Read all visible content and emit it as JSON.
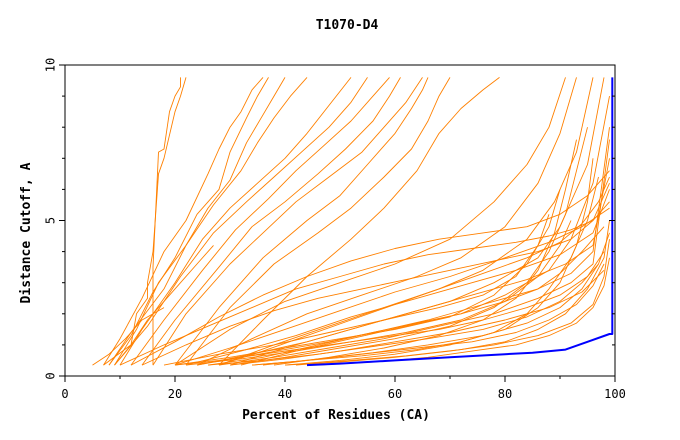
{
  "chart_data": {
    "type": "line",
    "title": "T1070-D4",
    "xlabel": "Percent of Residues (CA)",
    "ylabel": "Distance Cutoff, A",
    "xlim": [
      0,
      100
    ],
    "ylim": [
      0,
      10
    ],
    "x_ticks": [
      0,
      20,
      40,
      60,
      80,
      100
    ],
    "y_ticks": [
      0,
      5,
      10
    ],
    "grid": false,
    "legend": "none",
    "colors": {
      "models": "#ff8000",
      "best": "#0000ff"
    },
    "series": [
      {
        "color": "#0000ff",
        "x": [
          44,
          50,
          60,
          70,
          80,
          85,
          91,
          95,
          99,
          99.5,
          99.5
        ],
        "y": [
          0.35,
          0.4,
          0.5,
          0.6,
          0.7,
          0.75,
          0.85,
          1.1,
          1.35,
          1.35,
          9.6
        ]
      },
      {
        "color": "#ff8000",
        "x": [
          16,
          16,
          17,
          18,
          19,
          20,
          21,
          21
        ],
        "y": [
          0.35,
          3.5,
          7.2,
          7.3,
          8.5,
          9.0,
          9.3,
          9.6
        ]
      },
      {
        "color": "#ff8000",
        "x": [
          7,
          12,
          13,
          15,
          15,
          16,
          17,
          18,
          20,
          21,
          22
        ],
        "y": [
          0.35,
          1.0,
          2.0,
          2.5,
          3.0,
          4.0,
          6.5,
          7.0,
          8.5,
          9.0,
          9.6
        ]
      },
      {
        "color": "#ff8000",
        "x": [
          7,
          10,
          14,
          18,
          22,
          26,
          28,
          30,
          32,
          34,
          36
        ],
        "y": [
          0.35,
          1.2,
          2.5,
          4.0,
          5.0,
          6.5,
          7.3,
          8.0,
          8.5,
          9.2,
          9.6
        ]
      },
      {
        "color": "#ff8000",
        "x": [
          8,
          12,
          16,
          20,
          24,
          28,
          30,
          33,
          35,
          37
        ],
        "y": [
          0.35,
          1.3,
          2.7,
          3.8,
          5.2,
          6.0,
          7.2,
          8.3,
          9.0,
          9.6
        ]
      },
      {
        "color": "#ff8000",
        "x": [
          9,
          13,
          17,
          22,
          26,
          30,
          33,
          36,
          38,
          40
        ],
        "y": [
          0.35,
          1.5,
          3.0,
          4.2,
          5.4,
          6.3,
          7.5,
          8.4,
          9.0,
          9.6
        ]
      },
      {
        "color": "#ff8000",
        "x": [
          8,
          12,
          18,
          22,
          27,
          32,
          35,
          38,
          41,
          44
        ],
        "y": [
          0.35,
          1.4,
          2.8,
          4.2,
          5.5,
          6.6,
          7.5,
          8.3,
          9.0,
          9.6
        ]
      },
      {
        "color": "#ff8000",
        "x": [
          10,
          14,
          20,
          25,
          30,
          35,
          40,
          44,
          48,
          52
        ],
        "y": [
          0.35,
          1.5,
          3.0,
          4.4,
          5.4,
          6.2,
          7.0,
          7.8,
          8.7,
          9.6
        ]
      },
      {
        "color": "#ff8000",
        "x": [
          9,
          15,
          21,
          27,
          33,
          38,
          43,
          48,
          52,
          55
        ],
        "y": [
          0.35,
          1.6,
          3.2,
          4.6,
          5.6,
          6.4,
          7.2,
          8.0,
          8.8,
          9.6
        ]
      },
      {
        "color": "#ff8000",
        "x": [
          12,
          18,
          25,
          31,
          37,
          42,
          47,
          52,
          56,
          59
        ],
        "y": [
          0.35,
          1.8,
          3.4,
          4.7,
          5.7,
          6.6,
          7.4,
          8.2,
          9.0,
          9.6
        ]
      },
      {
        "color": "#ff8000",
        "x": [
          14,
          20,
          28,
          34,
          40,
          46,
          51,
          56,
          59,
          61
        ],
        "y": [
          0.35,
          1.8,
          3.5,
          4.8,
          5.6,
          6.5,
          7.3,
          8.2,
          9.0,
          9.6
        ]
      },
      {
        "color": "#ff8000",
        "x": [
          16,
          22,
          30,
          36,
          42,
          48,
          54,
          58,
          62,
          65
        ],
        "y": [
          0.35,
          2.0,
          3.6,
          4.6,
          5.6,
          6.4,
          7.2,
          8.0,
          8.8,
          9.6
        ]
      },
      {
        "color": "#ff8000",
        "x": [
          20,
          28,
          36,
          44,
          50,
          55,
          60,
          63,
          65,
          66
        ],
        "y": [
          0.35,
          2.2,
          3.8,
          5.0,
          5.8,
          6.8,
          7.8,
          8.6,
          9.2,
          9.6
        ]
      },
      {
        "color": "#ff8000",
        "x": [
          22,
          30,
          38,
          46,
          52,
          58,
          63,
          66,
          68,
          70
        ],
        "y": [
          0.35,
          2.2,
          3.6,
          4.6,
          5.4,
          6.4,
          7.3,
          8.2,
          9.0,
          9.6
        ]
      },
      {
        "color": "#ff8000",
        "x": [
          28,
          36,
          44,
          52,
          58,
          64,
          68,
          72,
          76,
          79
        ],
        "y": [
          0.35,
          1.8,
          3.2,
          4.4,
          5.4,
          6.6,
          7.8,
          8.6,
          9.2,
          9.6
        ]
      },
      {
        "color": "#ff8000",
        "x": [
          20,
          30,
          40,
          50,
          60,
          70,
          78,
          84,
          88,
          91
        ],
        "y": [
          0.35,
          1.5,
          2.4,
          3.0,
          3.6,
          4.4,
          5.6,
          6.8,
          8.0,
          9.6
        ]
      },
      {
        "color": "#ff8000",
        "x": [
          24,
          34,
          44,
          54,
          64,
          72,
          80,
          86,
          90,
          93
        ],
        "y": [
          0.35,
          1.2,
          2.0,
          2.6,
          3.2,
          3.8,
          4.8,
          6.2,
          7.8,
          9.6
        ]
      },
      {
        "color": "#ff8000",
        "x": [
          28,
          38,
          48,
          58,
          68,
          76,
          84,
          89,
          93,
          96
        ],
        "y": [
          0.35,
          1.0,
          1.6,
          2.2,
          2.8,
          3.4,
          4.4,
          5.6,
          7.2,
          9.6
        ]
      },
      {
        "color": "#ff8000",
        "x": [
          30,
          40,
          50,
          60,
          70,
          78,
          86,
          90,
          95,
          98
        ],
        "y": [
          0.35,
          0.9,
          1.4,
          1.9,
          2.4,
          3.0,
          3.8,
          4.8,
          6.8,
          9.6
        ]
      },
      {
        "color": "#ff8000",
        "x": [
          32,
          42,
          52,
          62,
          72,
          80,
          88,
          92,
          96,
          99
        ],
        "y": [
          0.35,
          0.8,
          1.2,
          1.6,
          2.0,
          2.6,
          3.4,
          4.4,
          6.2,
          9.0
        ]
      },
      {
        "color": "#ff8000",
        "x": [
          20,
          30,
          40,
          50,
          60,
          70,
          80,
          88,
          94,
          99
        ],
        "y": [
          0.35,
          0.9,
          1.5,
          2.1,
          2.7,
          3.2,
          3.8,
          4.3,
          4.8,
          5.4
        ]
      },
      {
        "color": "#ff8000",
        "x": [
          22,
          32,
          42,
          52,
          62,
          72,
          82,
          90,
          96,
          99
        ],
        "y": [
          0.35,
          0.8,
          1.3,
          1.9,
          2.4,
          2.9,
          3.4,
          3.9,
          4.6,
          6.0
        ]
      },
      {
        "color": "#ff8000",
        "x": [
          24,
          34,
          44,
          54,
          64,
          74,
          84,
          91,
          96,
          99
        ],
        "y": [
          0.35,
          0.7,
          1.1,
          1.6,
          2.1,
          2.6,
          3.1,
          3.6,
          4.2,
          7.0
        ]
      },
      {
        "color": "#ff8000",
        "x": [
          26,
          36,
          46,
          56,
          66,
          76,
          86,
          92,
          96,
          99
        ],
        "y": [
          0.35,
          0.6,
          1.0,
          1.4,
          1.8,
          2.3,
          2.8,
          3.3,
          4.0,
          8.0
        ]
      },
      {
        "color": "#ff8000",
        "x": [
          28,
          38,
          48,
          58,
          68,
          78,
          86,
          92,
          96,
          99
        ],
        "y": [
          0.35,
          0.6,
          0.9,
          1.2,
          1.6,
          2.0,
          2.5,
          3.0,
          3.6,
          7.6
        ]
      },
      {
        "color": "#ff8000",
        "x": [
          30,
          40,
          50,
          60,
          70,
          80,
          88,
          94,
          98
        ],
        "y": [
          0.35,
          0.55,
          0.8,
          1.1,
          1.4,
          1.8,
          2.2,
          2.7,
          3.4
        ]
      },
      {
        "color": "#ff8000",
        "x": [
          20,
          30,
          40,
          50,
          60,
          70,
          78,
          84,
          88,
          90
        ],
        "y": [
          0.35,
          0.6,
          0.9,
          1.2,
          1.5,
          1.9,
          2.6,
          3.6,
          4.8,
          6.0
        ]
      },
      {
        "color": "#ff8000",
        "x": [
          22,
          32,
          42,
          52,
          62,
          72,
          80,
          86,
          90,
          92
        ],
        "y": [
          0.35,
          0.55,
          0.8,
          1.1,
          1.4,
          1.8,
          2.4,
          3.2,
          4.2,
          5.0
        ]
      },
      {
        "color": "#ff8000",
        "x": [
          18,
          28,
          38,
          48,
          58,
          68,
          76,
          82,
          86,
          88
        ],
        "y": [
          0.35,
          0.7,
          1.0,
          1.4,
          1.8,
          2.2,
          2.6,
          3.2,
          4.2,
          5.2
        ]
      },
      {
        "color": "#ff8000",
        "x": [
          26,
          36,
          46,
          56,
          66,
          76,
          84,
          90,
          94,
          97
        ],
        "y": [
          0.35,
          0.5,
          0.7,
          0.95,
          1.2,
          1.5,
          1.9,
          2.4,
          3.0,
          3.6
        ]
      },
      {
        "color": "#ff8000",
        "x": [
          34,
          44,
          54,
          64,
          74,
          82,
          88,
          93,
          96,
          98
        ],
        "y": [
          0.35,
          0.5,
          0.7,
          0.9,
          1.1,
          1.4,
          1.8,
          2.3,
          2.9,
          3.6
        ]
      },
      {
        "color": "#ff8000",
        "x": [
          36,
          46,
          56,
          66,
          76,
          84,
          90,
          94,
          97,
          99
        ],
        "y": [
          0.35,
          0.55,
          0.75,
          1.0,
          1.3,
          1.7,
          2.2,
          2.8,
          3.6,
          4.6
        ]
      },
      {
        "color": "#ff8000",
        "x": [
          10,
          18,
          26,
          34,
          42,
          50,
          58,
          66,
          74,
          82,
          88,
          92,
          96,
          99
        ],
        "y": [
          0.35,
          1.0,
          1.6,
          2.2,
          2.8,
          3.2,
          3.6,
          3.9,
          4.1,
          4.3,
          4.5,
          4.7,
          5.0,
          5.6
        ]
      },
      {
        "color": "#ff8000",
        "x": [
          12,
          20,
          28,
          36,
          44,
          52,
          60,
          68,
          76,
          84,
          90,
          95,
          99
        ],
        "y": [
          0.35,
          1.1,
          1.9,
          2.6,
          3.2,
          3.7,
          4.1,
          4.4,
          4.6,
          4.8,
          5.2,
          5.8,
          6.6
        ]
      },
      {
        "color": "#ff8000",
        "x": [
          14,
          22,
          30,
          38,
          46,
          54,
          62,
          70,
          78,
          86,
          92,
          96,
          99
        ],
        "y": [
          0.35,
          1.0,
          1.6,
          2.1,
          2.5,
          2.8,
          3.1,
          3.4,
          3.7,
          4.0,
          4.4,
          5.0,
          6.2
        ]
      },
      {
        "color": "#ff8000",
        "x": [
          28,
          36,
          44,
          52,
          60,
          68,
          76,
          84,
          90,
          94,
          97,
          99
        ],
        "y": [
          0.35,
          0.8,
          1.3,
          1.8,
          2.3,
          2.8,
          3.3,
          3.8,
          4.3,
          4.9,
          5.6,
          6.4
        ]
      },
      {
        "color": "#ff8000",
        "x": [
          30,
          40,
          50,
          60,
          70,
          78,
          84,
          88,
          91,
          93,
          95
        ],
        "y": [
          0.35,
          0.6,
          0.9,
          1.2,
          1.6,
          2.2,
          3.0,
          4.0,
          5.2,
          6.6,
          8.0
        ]
      },
      {
        "color": "#ff8000",
        "x": [
          38,
          48,
          58,
          68,
          76,
          82,
          86,
          89,
          91,
          93
        ],
        "y": [
          0.35,
          0.6,
          0.9,
          1.3,
          1.8,
          2.5,
          3.4,
          4.6,
          6.0,
          7.6
        ]
      },
      {
        "color": "#ff8000",
        "x": [
          40,
          50,
          60,
          70,
          78,
          84,
          88,
          92,
          95,
          97
        ],
        "y": [
          0.35,
          0.5,
          0.7,
          1.0,
          1.4,
          2.0,
          2.8,
          3.8,
          5.0,
          6.4
        ]
      },
      {
        "color": "#ff8000",
        "x": [
          34,
          44,
          54,
          64,
          72,
          80,
          86,
          90,
          93,
          95,
          96
        ],
        "y": [
          0.35,
          0.5,
          0.65,
          0.85,
          1.1,
          1.5,
          2.2,
          3.0,
          4.2,
          5.6,
          7.0
        ]
      },
      {
        "color": "#ff8000",
        "x": [
          24,
          32,
          40,
          48,
          56,
          64,
          72,
          80,
          86,
          90,
          94,
          98
        ],
        "y": [
          0.35,
          0.6,
          0.85,
          1.1,
          1.4,
          1.7,
          2.0,
          2.4,
          2.8,
          3.3,
          4.0,
          4.8
        ]
      },
      {
        "color": "#ff8000",
        "x": [
          20,
          28,
          36,
          44,
          52,
          60,
          68,
          76,
          84,
          90,
          95,
          98
        ],
        "y": [
          0.35,
          0.5,
          0.7,
          0.9,
          1.1,
          1.3,
          1.5,
          1.8,
          2.2,
          2.6,
          3.2,
          4.0
        ]
      },
      {
        "color": "#ff8000",
        "x": [
          40,
          50,
          60,
          70,
          78,
          86,
          92,
          96,
          98,
          99
        ],
        "y": [
          0.35,
          0.45,
          0.6,
          0.8,
          1.0,
          1.3,
          1.7,
          2.3,
          3.2,
          4.4
        ]
      },
      {
        "color": "#ff8000",
        "x": [
          42,
          52,
          62,
          72,
          80,
          86,
          91,
          95,
          98,
          99
        ],
        "y": [
          0.35,
          0.5,
          0.65,
          0.85,
          1.1,
          1.5,
          2.0,
          2.8,
          3.8,
          5.0
        ]
      },
      {
        "color": "#ff8000",
        "x": [
          46,
          56,
          66,
          74,
          82,
          88,
          93,
          96,
          98,
          99
        ],
        "y": [
          0.35,
          0.45,
          0.6,
          0.8,
          1.0,
          1.3,
          1.7,
          2.2,
          2.9,
          3.8
        ]
      },
      {
        "color": "#ff8000",
        "x": [
          5,
          8,
          11,
          14,
          18
        ],
        "y": [
          0.35,
          0.7,
          1.2,
          1.8,
          2.2
        ]
      },
      {
        "color": "#ff8000",
        "x": [
          9,
          12,
          15,
          18,
          21,
          24,
          27
        ],
        "y": [
          0.35,
          1.0,
          1.8,
          2.4,
          3.0,
          3.6,
          4.2
        ]
      }
    ]
  }
}
